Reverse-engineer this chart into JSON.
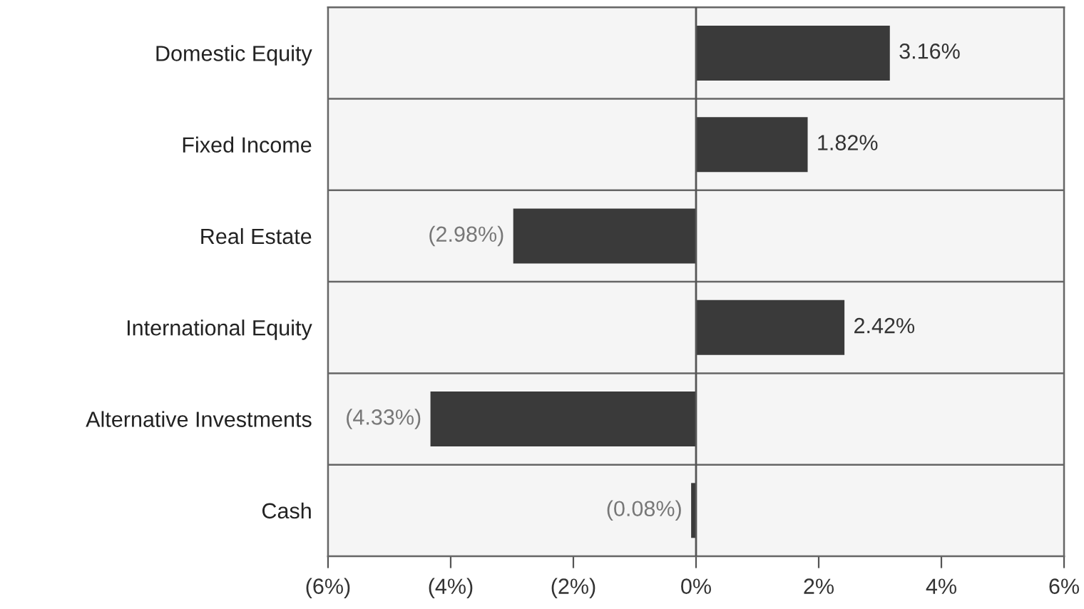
{
  "chart_data": {
    "type": "bar",
    "orientation": "horizontal",
    "categories": [
      "Domestic Equity",
      "Fixed Income",
      "Real Estate",
      "International Equity",
      "Alternative Investments",
      "Cash"
    ],
    "values": [
      3.16,
      1.82,
      -2.98,
      2.42,
      -4.33,
      -0.08
    ],
    "value_labels": [
      "3.16%",
      "1.82%",
      "(2.98%)",
      "2.42%",
      "(4.33%)",
      "(0.08%)"
    ],
    "color": "#3a3a3a",
    "xlim": [
      -6,
      6
    ],
    "xticks": [
      {
        "value": -6,
        "label": "(6%)"
      },
      {
        "value": -4,
        "label": "(4%)"
      },
      {
        "value": -2,
        "label": "(2%)"
      },
      {
        "value": 0,
        "label": "0%"
      },
      {
        "value": 2,
        "label": "2%"
      },
      {
        "value": 4,
        "label": "4%"
      },
      {
        "value": 6,
        "label": "6%"
      }
    ],
    "grid": "y"
  }
}
